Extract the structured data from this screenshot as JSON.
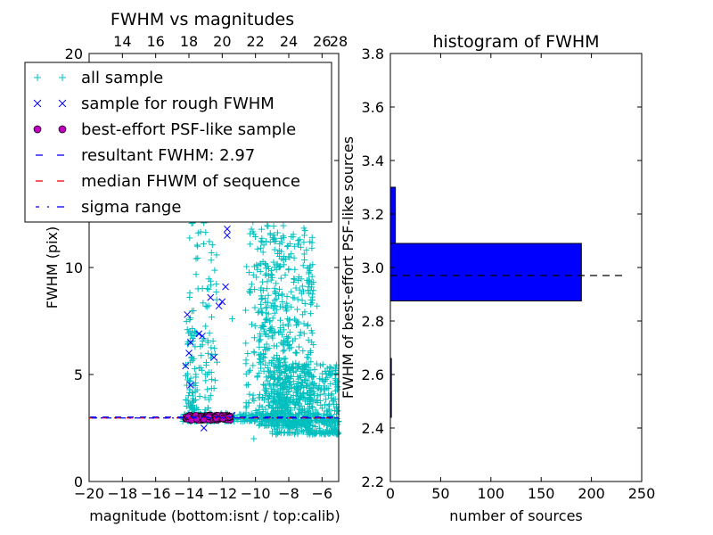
{
  "chart_data": [
    {
      "type": "scatter",
      "title": "FWHM vs magnitudes",
      "xlabel": "magnitude (bottom:isnt / top:calib)",
      "ylabel": "FWHM (pix)",
      "xlim": [
        -20,
        -5
      ],
      "ylim": [
        0,
        20
      ],
      "x_ticks": [
        "−20",
        "−18",
        "−16",
        "−14",
        "−12",
        "−10",
        "−8",
        "−6"
      ],
      "top_ticks": [
        "14",
        "16",
        "18",
        "20",
        "22",
        "24",
        "26",
        "28"
      ],
      "y_ticks": [
        "0",
        "5",
        "10",
        "15",
        "20"
      ],
      "legend": {
        "placement": "upper-left",
        "entries": [
          {
            "label": "all sample",
            "marker": "+",
            "color": "#00bfbf"
          },
          {
            "label": "sample for rough FWHM",
            "marker": "x",
            "color": "#0000ff"
          },
          {
            "label": "best-effort PSF-like sample",
            "marker": "o",
            "color": "#bf00bf"
          },
          {
            "label": "resultant FWHM: 2.97",
            "marker": "dashed",
            "color": "#0000ff"
          },
          {
            "label": "median FHWM of sequence",
            "marker": "dashed",
            "color": "#ff0000"
          },
          {
            "label": "sigma range",
            "marker": "dashdot",
            "color": "#0000ff"
          }
        ]
      },
      "resultant_fwhm": 2.97,
      "series": [
        {
          "name": "all sample",
          "color": "#00bfbf",
          "marker": "+",
          "clusters": [
            {
              "x": [
                -14.2,
                -13.6
              ],
              "y": [
                3.0,
                8.0
              ]
            },
            {
              "x": [
                -14.0,
                -12.3
              ],
              "y": [
                3.0,
                14.0
              ]
            },
            {
              "x": [
                -10.6,
                -8.0
              ],
              "y": [
                3.0,
                19.5
              ]
            },
            {
              "x": [
                -9.8,
                -6.5
              ],
              "y": [
                2.6,
                12.0
              ]
            },
            {
              "x": [
                -9.0,
                -5.0
              ],
              "y": [
                2.2,
                5.5
              ]
            },
            {
              "x": [
                -14.5,
                -5.0
              ],
              "y": [
                2.8,
                3.2
              ]
            }
          ],
          "points": [
            {
              "x": -8.2,
              "y": 12.5
            },
            {
              "x": -7.6,
              "y": 13.2
            },
            {
              "x": -6.9,
              "y": 9.4
            },
            {
              "x": -6.3,
              "y": 8.2
            },
            {
              "x": -9.9,
              "y": 12.8
            },
            {
              "x": -12.9,
              "y": 5.0
            },
            {
              "x": -11.4,
              "y": 7.6
            },
            {
              "x": -10.1,
              "y": 2.0
            }
          ]
        },
        {
          "name": "sample for rough FWHM",
          "color": "#0000ff",
          "marker": "x",
          "points": [
            {
              "x": -14.1,
              "y": 7.8
            },
            {
              "x": -13.9,
              "y": 6.5
            },
            {
              "x": -14.0,
              "y": 6.0
            },
            {
              "x": -13.4,
              "y": 6.9
            },
            {
              "x": -13.2,
              "y": 6.8
            },
            {
              "x": -12.7,
              "y": 8.6
            },
            {
              "x": -12.5,
              "y": 5.8
            },
            {
              "x": -12.2,
              "y": 8.2
            },
            {
              "x": -12.0,
              "y": 8.4
            },
            {
              "x": -11.8,
              "y": 9.1
            },
            {
              "x": -11.7,
              "y": 11.5
            },
            {
              "x": -11.7,
              "y": 11.8
            },
            {
              "x": -13.9,
              "y": 4.5
            },
            {
              "x": -14.2,
              "y": 5.4
            },
            {
              "x": -12.9,
              "y": 3.1
            },
            {
              "x": -13.1,
              "y": 2.5
            },
            {
              "x": -12.2,
              "y": 3.1
            },
            {
              "x": -11.4,
              "y": 3.1
            }
          ]
        },
        {
          "name": "best-effort PSF-like sample",
          "color": "#bf00bf",
          "marker": "o",
          "range_x": [
            -14.2,
            -11.5
          ],
          "range_y": [
            2.85,
            3.1
          ]
        }
      ]
    },
    {
      "type": "bar",
      "orientation": "horizontal",
      "title": "histogram of FWHM",
      "xlabel": "number of sources",
      "ylabel": "FWHM of best-effort PSF-like sources",
      "xlim": [
        0,
        250
      ],
      "ylim": [
        2.2,
        3.8
      ],
      "x_ticks": [
        "0",
        "50",
        "100",
        "150",
        "200",
        "250"
      ],
      "y_ticks": [
        "2.2",
        "2.4",
        "2.6",
        "2.8",
        "3.0",
        "3.2",
        "3.4",
        "3.6",
        "3.8"
      ],
      "bar_color": "#0000ff",
      "bins": [
        {
          "from": 2.44,
          "to": 2.66,
          "count": 1
        },
        {
          "from": 2.66,
          "to": 2.875,
          "count": 0
        },
        {
          "from": 2.875,
          "to": 3.09,
          "count": 190
        },
        {
          "from": 3.09,
          "to": 3.3,
          "count": 5
        }
      ],
      "dashed_line_y": 2.97,
      "dashed_line_x_range": [
        0,
        235
      ]
    }
  ]
}
